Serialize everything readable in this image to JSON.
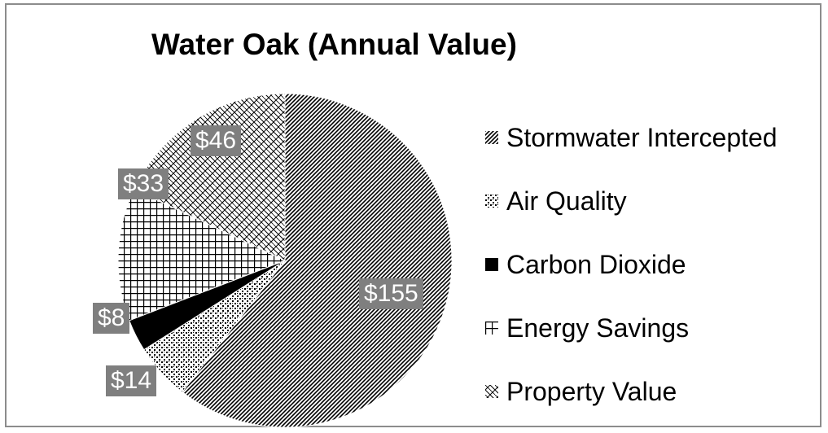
{
  "chart_data": {
    "type": "pie",
    "title": "Water Oak (Annual Value)",
    "slices": [
      {
        "name": "Stormwater Intercepted",
        "value": 155,
        "label": "$155",
        "pattern": "diag-dense"
      },
      {
        "name": "Air Quality",
        "value": 14,
        "label": "$14",
        "pattern": "dots"
      },
      {
        "name": "Carbon Dioxide",
        "value": 8,
        "label": "$8",
        "pattern": "solid"
      },
      {
        "name": "Energy Savings",
        "value": 33,
        "label": "$33",
        "pattern": "grid"
      },
      {
        "name": "Property Value",
        "value": 46,
        "label": "$46",
        "pattern": "diamond"
      }
    ],
    "legend_position": "right",
    "start_angle": "top, clockwise",
    "colors": {
      "ink": "#000000",
      "label_box": "#7f7f7f",
      "label_text": "#ffffff",
      "frame_border": "#8c8c8c"
    }
  }
}
